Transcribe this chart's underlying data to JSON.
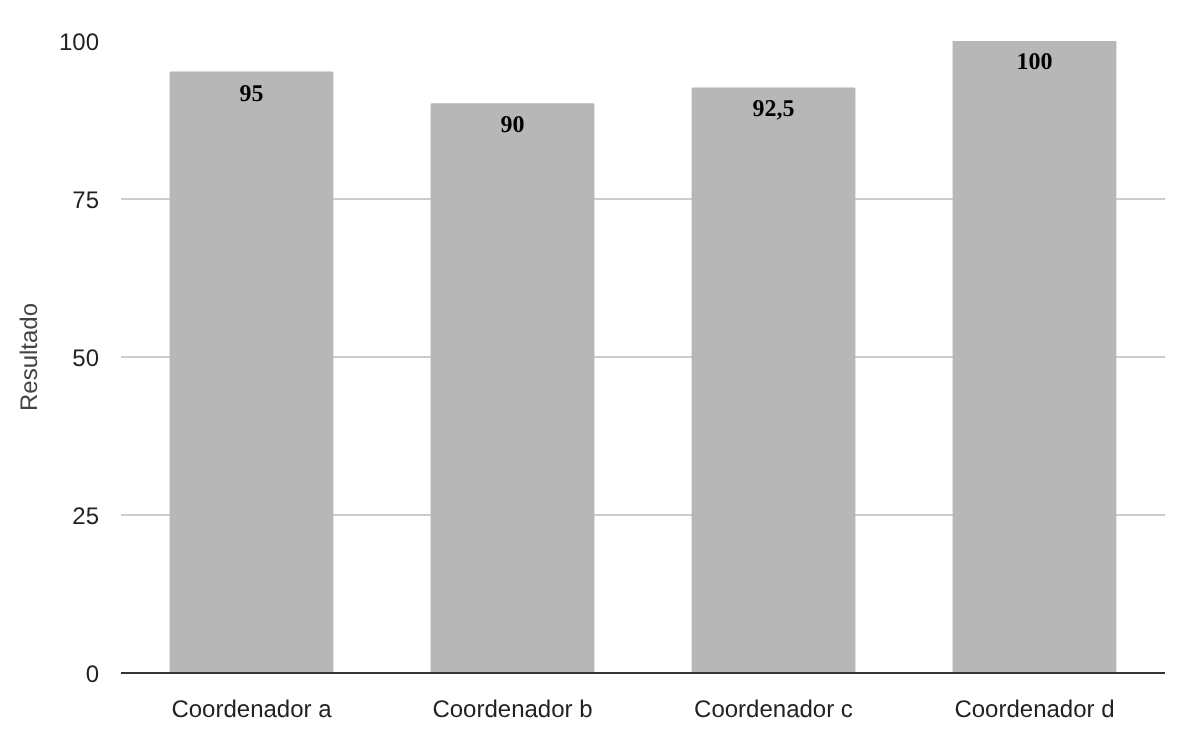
{
  "chart_data": {
    "type": "bar",
    "categories": [
      "Coordenador a",
      "Coordenador b",
      "Coordenador c",
      "Coordenador d"
    ],
    "values": [
      95,
      90,
      92.5,
      100
    ],
    "value_labels": [
      "95",
      "90",
      "92,5",
      "100"
    ],
    "color": "#b7b7b7",
    "ylabel": "Resultado",
    "ylim": [
      0,
      100
    ],
    "yticks": [
      0,
      25,
      50,
      75,
      100
    ],
    "grid": "y"
  }
}
